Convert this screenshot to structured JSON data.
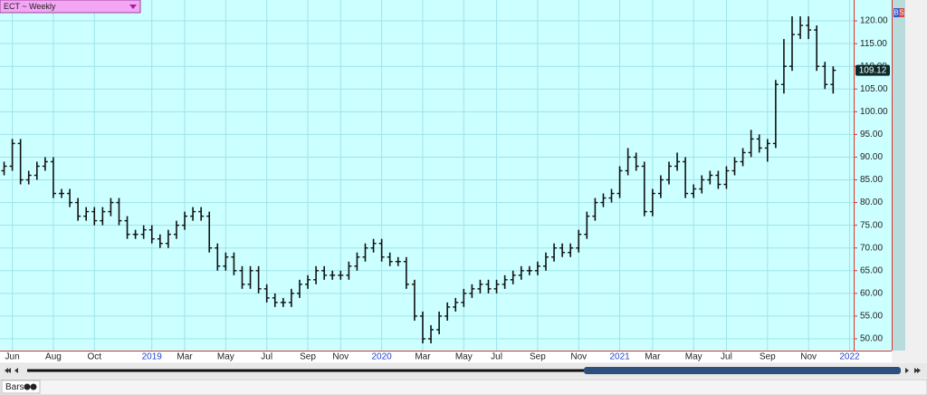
{
  "chart_data": {
    "type": "ohlc",
    "title": "ECT ~ Weekly",
    "bottom_label": "Bars",
    "side_buttons": [
      "B",
      "S"
    ],
    "background": "#ccffff",
    "grid": true,
    "bar_color": "#111111",
    "year_label_color": "#2244cc",
    "categories": [
      null,
      "Jun",
      null,
      null,
      null,
      null,
      "Aug",
      null,
      null,
      null,
      null,
      "Oct",
      null,
      null,
      null,
      null,
      null,
      null,
      "2019",
      null,
      null,
      null,
      "Mar",
      null,
      null,
      null,
      null,
      "May",
      null,
      null,
      null,
      null,
      "Jul",
      null,
      null,
      null,
      null,
      "Sep",
      null,
      null,
      null,
      "Nov",
      null,
      null,
      null,
      null,
      "2020",
      null,
      null,
      null,
      null,
      "Mar",
      null,
      null,
      null,
      null,
      "May",
      null,
      null,
      null,
      "Jul",
      null,
      null,
      null,
      null,
      "Sep",
      null,
      null,
      null,
      null,
      "Nov",
      null,
      null,
      null,
      null,
      "2021",
      null,
      null,
      null,
      "Mar",
      null,
      null,
      null,
      null,
      "May",
      null,
      null,
      null,
      "Jul",
      null,
      null,
      null,
      null,
      "Sep",
      null,
      null,
      null,
      null,
      "Nov",
      null,
      null,
      null,
      null,
      "2022"
    ],
    "open": [
      87,
      88,
      93,
      85,
      86,
      88,
      89,
      82,
      82,
      80,
      77,
      78,
      76,
      78,
      80,
      76,
      73,
      73,
      74,
      72,
      71,
      73,
      75,
      77,
      78,
      77,
      70,
      66,
      68,
      65,
      62,
      65,
      61,
      59,
      58,
      58,
      60,
      62,
      63,
      65,
      64,
      64,
      64,
      66,
      68,
      70,
      71,
      68,
      67,
      67,
      62,
      55,
      50,
      52,
      55,
      57,
      58,
      60,
      61,
      62,
      61,
      62,
      63,
      64,
      65,
      65,
      66,
      68,
      70,
      69,
      70,
      73,
      77,
      80,
      81,
      82,
      87,
      90,
      88,
      78,
      82,
      85,
      88,
      89,
      82,
      83,
      85,
      86,
      84,
      87,
      89,
      91,
      94,
      92,
      93,
      106,
      110,
      117,
      119,
      118,
      110,
      106,
      null,
      null
    ],
    "high": [
      89,
      94,
      94,
      87,
      89,
      90,
      90,
      83,
      83,
      81,
      79,
      79,
      79,
      81,
      81,
      77,
      74,
      75,
      75,
      73,
      74,
      76,
      78,
      79,
      79,
      78,
      71,
      69,
      69,
      66,
      66,
      66,
      62,
      60,
      59,
      61,
      63,
      64,
      66,
      66,
      65,
      65,
      67,
      69,
      71,
      72,
      72,
      69,
      68,
      68,
      63,
      56,
      53,
      56,
      58,
      59,
      61,
      62,
      63,
      63,
      63,
      64,
      65,
      66,
      66,
      67,
      69,
      71,
      71,
      71,
      74,
      78,
      81,
      82,
      83,
      88,
      92,
      91,
      89,
      83,
      86,
      89,
      91,
      90,
      84,
      86,
      87,
      87,
      88,
      90,
      92,
      96,
      95,
      94,
      107,
      116,
      121,
      121,
      121,
      119,
      111,
      110,
      null,
      null
    ],
    "low": [
      86,
      87,
      84,
      84,
      85,
      87,
      81,
      81,
      79,
      76,
      76,
      75,
      75,
      77,
      75,
      72,
      72,
      72,
      71,
      70,
      70,
      72,
      74,
      76,
      76,
      69,
      65,
      65,
      64,
      61,
      61,
      60,
      58,
      57,
      57,
      57,
      59,
      61,
      62,
      63,
      63,
      63,
      63,
      65,
      67,
      69,
      67,
      66,
      66,
      61,
      54,
      49,
      49,
      51,
      54,
      56,
      57,
      59,
      60,
      60,
      60,
      61,
      62,
      63,
      64,
      64,
      65,
      67,
      68,
      68,
      69,
      72,
      76,
      79,
      80,
      81,
      86,
      87,
      77,
      77,
      81,
      84,
      87,
      81,
      81,
      82,
      84,
      83,
      83,
      86,
      88,
      90,
      91,
      89,
      92,
      104,
      109,
      116,
      116,
      109,
      105,
      104,
      null,
      null
    ],
    "close": [
      88,
      93,
      85,
      86,
      88,
      89,
      82,
      82,
      80,
      77,
      78,
      76,
      78,
      80,
      76,
      73,
      73,
      74,
      72,
      71,
      73,
      75,
      77,
      78,
      77,
      70,
      66,
      68,
      65,
      62,
      65,
      61,
      59,
      58,
      58,
      60,
      62,
      63,
      65,
      64,
      64,
      64,
      66,
      68,
      70,
      71,
      68,
      67,
      67,
      62,
      55,
      50,
      52,
      55,
      57,
      58,
      60,
      61,
      62,
      61,
      62,
      63,
      64,
      65,
      65,
      66,
      68,
      70,
      69,
      70,
      73,
      77,
      80,
      81,
      82,
      87,
      90,
      88,
      78,
      82,
      85,
      88,
      89,
      82,
      83,
      85,
      86,
      84,
      87,
      89,
      91,
      94,
      92,
      93,
      106,
      110,
      117,
      119,
      118,
      110,
      106,
      109.12,
      null,
      null
    ],
    "ylim": [
      47.4,
      124.6
    ],
    "yticks": [
      {
        "value": 50,
        "label": "50.00"
      },
      {
        "value": 55,
        "label": "55.00"
      },
      {
        "value": 60,
        "label": "60.00"
      },
      {
        "value": 65,
        "label": "65.00"
      },
      {
        "value": 70,
        "label": "70.00"
      },
      {
        "value": 75,
        "label": "75.00"
      },
      {
        "value": 80,
        "label": "80.00"
      },
      {
        "value": 85,
        "label": "85.00"
      },
      {
        "value": 90,
        "label": "90.00"
      },
      {
        "value": 95,
        "label": "95.00"
      },
      {
        "value": 100,
        "label": "100.00"
      },
      {
        "value": 105,
        "label": "105.00"
      },
      {
        "value": 110,
        "label": "110.00"
      },
      {
        "value": 115,
        "label": "115.00"
      },
      {
        "value": 120,
        "label": "120.00"
      }
    ]
  }
}
